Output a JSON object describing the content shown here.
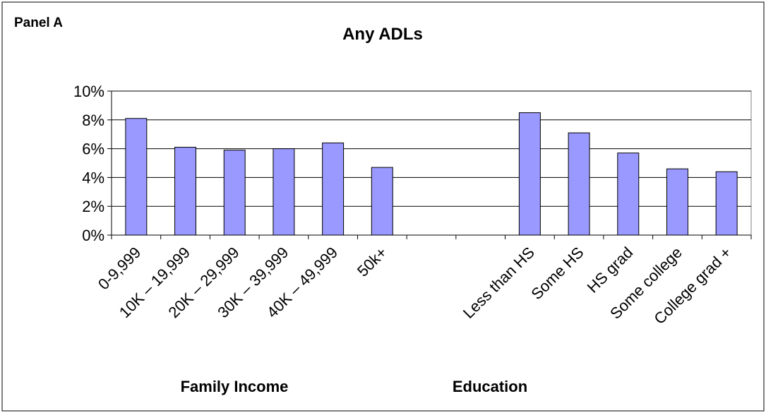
{
  "panel_label": "Panel A",
  "chart_data": {
    "type": "bar",
    "title": "Any ADLs",
    "categories": [
      "0-9,999",
      "10K – 19,999",
      "20K – 29,999",
      "30K – 39,999",
      "40K – 49,999",
      "50k+",
      "",
      "",
      "Less than HS",
      "Some HS",
      "HS grad",
      "Some college",
      "College grad +"
    ],
    "values": [
      8.1,
      6.1,
      5.9,
      6.0,
      6.4,
      4.7,
      null,
      null,
      8.5,
      7.1,
      5.7,
      4.6,
      4.4
    ],
    "ylim": [
      0,
      10
    ],
    "yticks": [
      "0%",
      "2%",
      "4%",
      "6%",
      "8%",
      "10%"
    ],
    "ytick_values": [
      0,
      2,
      4,
      6,
      8,
      10
    ],
    "group_labels": [
      "Family Income",
      "Education"
    ],
    "grid": true,
    "bar_color": "#9999ff",
    "xlabel": "",
    "ylabel": ""
  }
}
